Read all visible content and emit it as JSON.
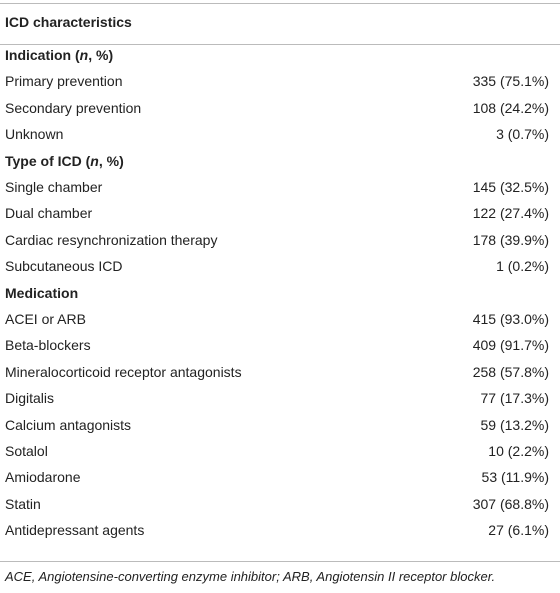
{
  "header": "ICD characteristics",
  "sections": [
    {
      "title": [
        {
          "text": "Indication ("
        },
        {
          "text": "n",
          "italic": true
        },
        {
          "text": ", %)"
        }
      ],
      "rows": [
        [
          "Primary prevention",
          "335 (75.1%)"
        ],
        [
          "Secondary prevention",
          "108 (24.2%)"
        ],
        [
          "Unknown",
          "3 (0.7%)"
        ]
      ]
    },
    {
      "title": [
        {
          "text": "Type of ICD ("
        },
        {
          "text": "n",
          "italic": true
        },
        {
          "text": ", %)"
        }
      ],
      "rows": [
        [
          "Single chamber",
          "145 (32.5%)"
        ],
        [
          "Dual chamber",
          "122 (27.4%)"
        ],
        [
          "Cardiac resynchronization therapy",
          "178 (39.9%)"
        ],
        [
          "Subcutaneous ICD",
          "1 (0.2%)"
        ]
      ]
    },
    {
      "title": [
        {
          "text": "Medication"
        }
      ],
      "rows": [
        [
          "ACEI or ARB",
          "415 (93.0%)"
        ],
        [
          "Beta-blockers",
          "409 (91.7%)"
        ],
        [
          "Mineralocorticoid receptor antagonists",
          "258 (57.8%)"
        ],
        [
          "Digitalis",
          "77 (17.3%)"
        ],
        [
          "Calcium antagonists",
          "59 (13.2%)"
        ],
        [
          "Sotalol",
          "10 (2.2%)"
        ],
        [
          "Amiodarone",
          "53 (11.9%)"
        ],
        [
          "Statin",
          "307 (68.8%)"
        ],
        [
          "Antidepressant agents",
          "27 (6.1%)"
        ]
      ]
    }
  ],
  "footnote": "ACE, Angiotensine-converting enzyme inhibitor; ARB, Angiotensin II receptor blocker."
}
